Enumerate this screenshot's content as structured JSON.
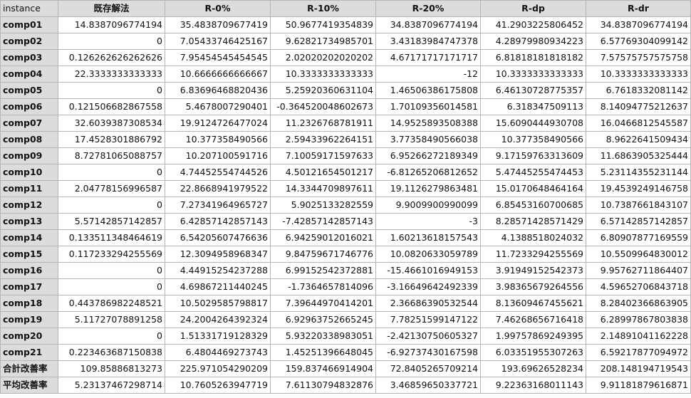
{
  "headers": [
    "instance",
    "既存解法",
    "R-0%",
    "R-10%",
    "R-20%",
    "R-dp",
    "R-dr"
  ],
  "rows": [
    [
      "comp01",
      "14.8387096774194",
      "35.4838709677419",
      "50.9677419354839",
      "34.8387096774194",
      "41.2903225806452",
      "34.8387096774194"
    ],
    [
      "comp02",
      "0",
      "7.05433746425167",
      "9.62821734985701",
      "3.43183984747378",
      "4.28979980934223",
      "6.57769304099142"
    ],
    [
      "comp03",
      "0.126262626262626",
      "7.95454545454545",
      "2.02020202020202",
      "4.67171717171717",
      "6.81818181818182",
      "7.57575757575758"
    ],
    [
      "comp04",
      "22.3333333333333",
      "10.6666666666667",
      "10.3333333333333",
      "-12",
      "10.3333333333333",
      "10.3333333333333"
    ],
    [
      "comp05",
      "0",
      "6.83696468820436",
      "5.25920360631104",
      "1.46506386175808",
      "6.46130728775357",
      "6.7618332081142"
    ],
    [
      "comp06",
      "0.121506682867558",
      "5.4678007290401",
      "-0.364520048602673",
      "1.70109356014581",
      "6.318347509113",
      "8.14094775212637"
    ],
    [
      "comp07",
      "32.6039387308534",
      "19.9124726477024",
      "11.2326768781911",
      "14.9525893508388",
      "15.6090444930708",
      "16.0466812545587"
    ],
    [
      "comp08",
      "17.4528301886792",
      "10.377358490566",
      "2.59433962264151",
      "3.77358490566038",
      "10.377358490566",
      "8.9622641509434"
    ],
    [
      "comp09",
      "8.72781065088757",
      "10.207100591716",
      "7.10059171597633",
      "6.95266272189349",
      "9.17159763313609",
      "11.6863905325444"
    ],
    [
      "comp10",
      "0",
      "4.74452554744526",
      "4.50121654501217",
      "-6.81265206812652",
      "5.47445255474453",
      "5.23114355231144"
    ],
    [
      "comp11",
      "2.04778156996587",
      "22.8668941979522",
      "14.3344709897611",
      "19.1126279863481",
      "15.0170648464164",
      "19.4539249146758"
    ],
    [
      "comp12",
      "0",
      "7.27341964965727",
      "5.9025133282559",
      "9.9009900990099",
      "6.85453160700685",
      "10.7387661843107"
    ],
    [
      "comp13",
      "5.57142857142857",
      "6.42857142857143",
      "-7.42857142857143",
      "-3",
      "8.28571428571429",
      "6.57142857142857"
    ],
    [
      "comp14",
      "0.133511348464619",
      "6.54205607476636",
      "6.94259012016021",
      "1.60213618157543",
      "4.1388518024032",
      "6.80907877169559"
    ],
    [
      "comp15",
      "0.117233294255569",
      "12.3094958968347",
      "9.84759671746776",
      "10.0820633059789",
      "11.7233294255569",
      "10.5509964830012"
    ],
    [
      "comp16",
      "0",
      "4.44915254237288",
      "6.99152542372881",
      "-15.4661016949153",
      "3.91949152542373",
      "9.95762711864407"
    ],
    [
      "comp17",
      "0",
      "4.69867211440245",
      "-1.7364657814096",
      "-3.16649642492339",
      "3.98365679264556",
      "4.59652706843718"
    ],
    [
      "comp18",
      "0.443786982248521",
      "10.5029585798817",
      "7.39644970414201",
      "2.36686390532544",
      "8.13609467455621",
      "8.28402366863905"
    ],
    [
      "comp19",
      "5.11727078891258",
      "24.2004264392324",
      "6.92963752665245",
      "7.78251599147122",
      "7.46268656716418",
      "6.28997867803838"
    ],
    [
      "comp20",
      "0",
      "1.51331719128329",
      "5.93220338983051",
      "-2.42130750605327",
      "1.99757869249395",
      "2.14891041162228"
    ],
    [
      "comp21",
      "0.223463687150838",
      "6.4804469273743",
      "1.45251396648045",
      "-6.92737430167598",
      "6.03351955307263",
      "6.59217877094972"
    ],
    [
      "合計改善率",
      "109.85886813273",
      "225.971054290209",
      "159.837466914904",
      "72.8405265709214",
      "193.69626528234",
      "208.148194719543"
    ],
    [
      "平均改善率",
      "5.23137467298714",
      "10.7605263947719",
      "7.61130794832876",
      "3.46859650337721",
      "9.22363168011143",
      "9.91181879616871"
    ]
  ]
}
